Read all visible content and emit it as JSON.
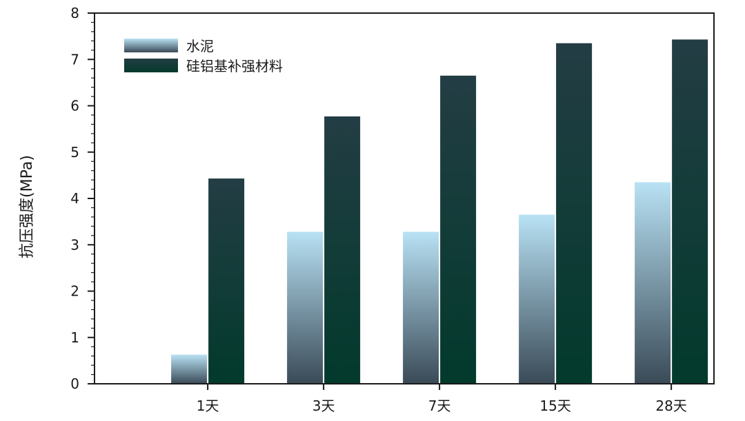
{
  "chart_data": {
    "type": "bar",
    "title": "",
    "xlabel": "",
    "ylabel": "抗压强度(MPa)",
    "ylim": [
      0,
      8
    ],
    "yticks": [
      0,
      1,
      2,
      3,
      4,
      5,
      6,
      7,
      8
    ],
    "grid": false,
    "legend_position": "top-left",
    "categories": [
      "1天",
      "3天",
      "7天",
      "15天",
      "28天"
    ],
    "series": [
      {
        "name": "水泥",
        "values": [
          0.63,
          3.28,
          3.28,
          3.65,
          4.35
        ],
        "color_top": "#b8e2f4",
        "color_bottom": "#3a4a57"
      },
      {
        "name": "硅铝基补强材料",
        "values": [
          4.43,
          5.77,
          6.65,
          7.35,
          7.43
        ],
        "color_top": "#233d44",
        "color_bottom": "#023a2c"
      }
    ]
  }
}
